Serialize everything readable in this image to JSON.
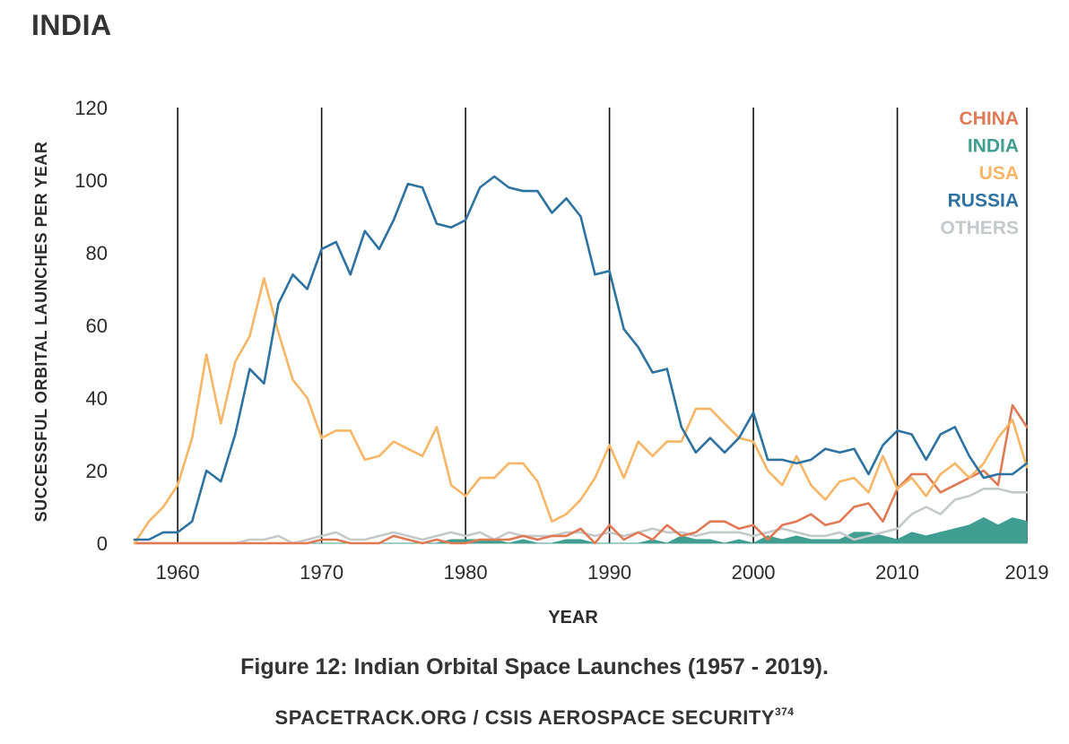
{
  "page_title": "INDIA",
  "caption": "Figure 12: Indian Orbital Space Launches (1957 - 2019).",
  "source": "SPACETRACK.ORG / CSIS AEROSPACE SECURITY",
  "source_footnote": "374",
  "chart_data": {
    "type": "line",
    "xlabel": "YEAR",
    "ylabel": "SUCCESSFUL ORBITAL LAUNCHES PER YEAR",
    "xlim": [
      1957,
      2019
    ],
    "ylim": [
      0,
      120
    ],
    "x_ticks": [
      1960,
      1970,
      1980,
      1990,
      2000,
      2010,
      2019
    ],
    "y_ticks": [
      0,
      20,
      40,
      60,
      80,
      100,
      120
    ],
    "vertical_gridlines": [
      1960,
      1970,
      1980,
      1990,
      2000,
      2010,
      2019
    ],
    "legend_position": "top-right",
    "x": [
      1957,
      1958,
      1959,
      1960,
      1961,
      1962,
      1963,
      1964,
      1965,
      1966,
      1967,
      1968,
      1969,
      1970,
      1971,
      1972,
      1973,
      1974,
      1975,
      1976,
      1977,
      1978,
      1979,
      1980,
      1981,
      1982,
      1983,
      1984,
      1985,
      1986,
      1987,
      1988,
      1989,
      1990,
      1991,
      1992,
      1993,
      1994,
      1995,
      1996,
      1997,
      1998,
      1999,
      2000,
      2001,
      2002,
      2003,
      2004,
      2005,
      2006,
      2007,
      2008,
      2009,
      2010,
      2011,
      2012,
      2013,
      2014,
      2015,
      2016,
      2017,
      2018,
      2019
    ],
    "series": [
      {
        "name": "CHINA",
        "color": "#e07a55",
        "style": "line",
        "values": [
          0,
          0,
          0,
          0,
          0,
          0,
          0,
          0,
          0,
          0,
          0,
          0,
          0,
          1,
          1,
          0,
          0,
          0,
          2,
          1,
          0,
          1,
          0,
          0,
          1,
          1,
          1,
          2,
          1,
          2,
          2,
          4,
          0,
          5,
          1,
          3,
          1,
          5,
          2,
          3,
          6,
          6,
          4,
          5,
          1,
          5,
          6,
          8,
          5,
          6,
          10,
          11,
          6,
          15,
          19,
          19,
          14,
          16,
          18,
          20,
          16,
          38,
          32
        ]
      },
      {
        "name": "INDIA",
        "color": "#3f9e91",
        "style": "area",
        "values": [
          0,
          0,
          0,
          0,
          0,
          0,
          0,
          0,
          0,
          0,
          0,
          0,
          0,
          0,
          0,
          0,
          0,
          0,
          0,
          0,
          0,
          0,
          1,
          1,
          1,
          1,
          0,
          1,
          0,
          0,
          1,
          1,
          0,
          0,
          0,
          0,
          1,
          0,
          2,
          1,
          1,
          0,
          1,
          0,
          2,
          1,
          2,
          1,
          1,
          1,
          3,
          3,
          2,
          1,
          3,
          2,
          3,
          4,
          5,
          7,
          5,
          7,
          6
        ]
      },
      {
        "name": "USA",
        "color": "#f7b665",
        "style": "line",
        "values": [
          0,
          6,
          10,
          16,
          29,
          52,
          33,
          50,
          57,
          73,
          58,
          45,
          40,
          29,
          31,
          31,
          23,
          24,
          28,
          26,
          24,
          32,
          16,
          13,
          18,
          18,
          22,
          22,
          17,
          6,
          8,
          12,
          18,
          27,
          18,
          28,
          24,
          28,
          28,
          37,
          37,
          33,
          29,
          28,
          20,
          16,
          24,
          16,
          12,
          17,
          18,
          14,
          24,
          15,
          18,
          13,
          19,
          22,
          18,
          22,
          29,
          34,
          21
        ]
      },
      {
        "name": "RUSSIA",
        "color": "#2d72a0",
        "style": "line",
        "values": [
          1,
          1,
          3,
          3,
          6,
          20,
          17,
          30,
          48,
          44,
          66,
          74,
          70,
          81,
          83,
          74,
          86,
          81,
          89,
          99,
          98,
          88,
          87,
          89,
          98,
          101,
          98,
          97,
          97,
          91,
          95,
          90,
          74,
          75,
          59,
          54,
          47,
          48,
          32,
          25,
          29,
          25,
          29,
          36,
          23,
          23,
          22,
          23,
          26,
          25,
          26,
          19,
          27,
          31,
          30,
          23,
          30,
          32,
          24,
          18,
          19,
          19,
          22
        ]
      },
      {
        "name": "OTHERS",
        "color": "#c4c9cc",
        "style": "line",
        "values": [
          0,
          0,
          0,
          0,
          0,
          0,
          0,
          0,
          1,
          1,
          2,
          0,
          1,
          2,
          3,
          1,
          1,
          2,
          3,
          2,
          1,
          2,
          3,
          2,
          3,
          1,
          3,
          2,
          2,
          2,
          3,
          3,
          2,
          3,
          2,
          3,
          4,
          3,
          3,
          2,
          3,
          3,
          3,
          2,
          3,
          4,
          3,
          2,
          2,
          3,
          1,
          2,
          3,
          4,
          8,
          10,
          8,
          12,
          13,
          15,
          15,
          14,
          14
        ]
      }
    ]
  }
}
